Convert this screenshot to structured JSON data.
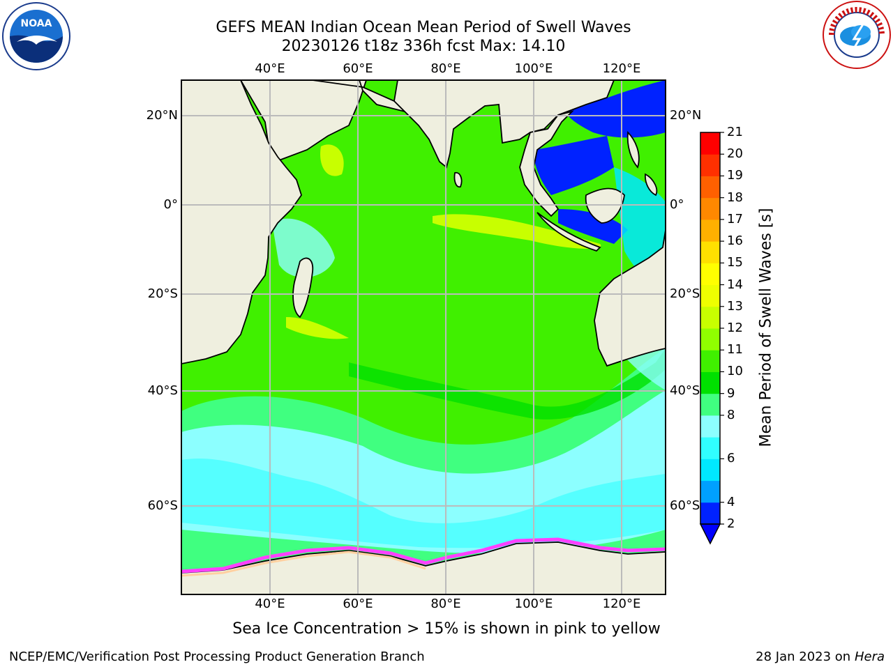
{
  "title": {
    "line1": "GEFS MEAN Indian Ocean Mean Period of Swell Waves",
    "line2": "20230126 t18z 336h fcst   Max: 14.10"
  },
  "logos": {
    "left": {
      "name": "noaa-logo",
      "text": "NOAA"
    },
    "right": {
      "name": "nws-logo",
      "text": "NATIONAL WEATHER SERVICE"
    }
  },
  "map": {
    "lon_ticks": [
      "40°E",
      "60°E",
      "80°E",
      "100°E",
      "120°E"
    ],
    "lat_ticks": [
      "20°N",
      "0°",
      "20°S",
      "40°S",
      "60°S"
    ],
    "land_color": "#EFEFDF",
    "grid_color": "#BBBBBB"
  },
  "colorbar": {
    "title": "Mean Period of Swell Waves [s]",
    "tick_labels": [
      "21",
      "20",
      "19",
      "18",
      "17",
      "16",
      "15",
      "14",
      "13",
      "12",
      "11",
      "10",
      "9",
      "8",
      "6",
      "4",
      "2"
    ],
    "bins": [
      {
        "color": "#0022FF",
        "label": "2-4"
      },
      {
        "color": "#00A0FF",
        "label": "4-5"
      },
      {
        "color": "#00E8FF",
        "label": "5-6"
      },
      {
        "color": "#30FFFF",
        "label": "6-7"
      },
      {
        "color": "#8CFFFF",
        "label": "7-8"
      },
      {
        "color": "#40FF80",
        "label": "8-9"
      },
      {
        "color": "#00E000",
        "label": "9-10"
      },
      {
        "color": "#40F000",
        "label": "10-11"
      },
      {
        "color": "#90FF00",
        "label": "11-12"
      },
      {
        "color": "#C8FF00",
        "label": "12-13"
      },
      {
        "color": "#EEFF00",
        "label": "13-14"
      },
      {
        "color": "#FFFF00",
        "label": "14-15"
      },
      {
        "color": "#FFE000",
        "label": "15-16"
      },
      {
        "color": "#FFB000",
        "label": "16-17"
      },
      {
        "color": "#FF8800",
        "label": "17-18"
      },
      {
        "color": "#FF6000",
        "label": "18-19"
      },
      {
        "color": "#FF3000",
        "label": "19-20"
      },
      {
        "color": "#FF0000",
        "label": "20-21"
      }
    ],
    "under_color": "#0000FF"
  },
  "note": "Sea Ice Concentration > 15% is shown in pink to yellow",
  "footer": {
    "left": "NCEP/EMC/Verification Post Processing Product Generation Branch",
    "right_prefix": "28 Jan 2023 on ",
    "right_host": "Hera"
  }
}
